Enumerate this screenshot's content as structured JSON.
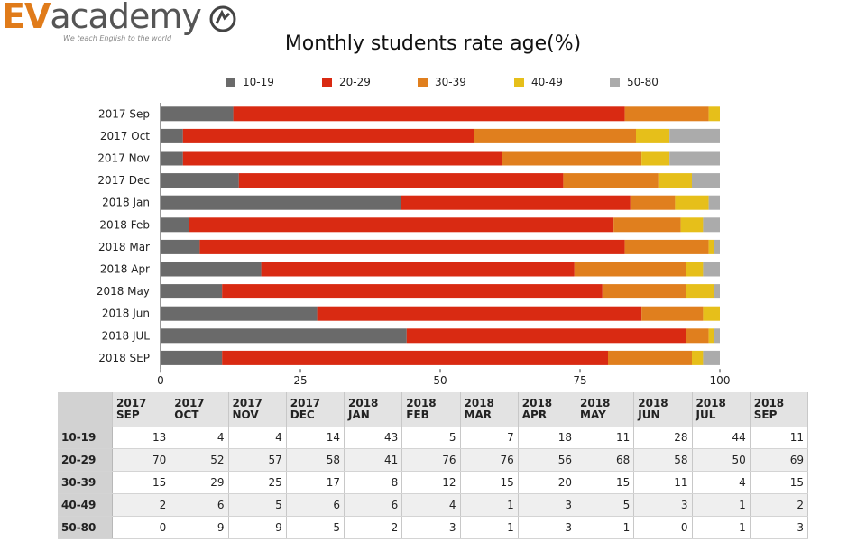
{
  "logo": {
    "brand_prefix": "EV",
    "brand_suffix": "academy",
    "tagline": "We teach English to the world"
  },
  "chart_data": {
    "type": "bar",
    "orientation": "horizontal",
    "stacked": true,
    "title": "Monthly students rate age(%)",
    "categories": [
      "2017 Sep",
      "2017 Oct",
      "2017 Nov",
      "2017 Dec",
      "2018 Jan",
      "2018 Feb",
      "2018 Mar",
      "2018 Apr",
      "2018 May",
      "2018 Jun",
      "2018 JUL",
      "2018 SEP"
    ],
    "series": [
      {
        "name": "10-19",
        "color": "#6a6a6a",
        "values": [
          13,
          4,
          4,
          14,
          43,
          5,
          7,
          18,
          11,
          28,
          44,
          11
        ]
      },
      {
        "name": "20-29",
        "color": "#d92a12",
        "values": [
          70,
          52,
          57,
          58,
          41,
          76,
          76,
          56,
          68,
          58,
          50,
          69
        ]
      },
      {
        "name": "30-39",
        "color": "#e07f1e",
        "values": [
          15,
          29,
          25,
          17,
          8,
          12,
          15,
          20,
          15,
          11,
          4,
          15
        ]
      },
      {
        "name": "40-49",
        "color": "#e6bf1a",
        "values": [
          2,
          6,
          5,
          6,
          6,
          4,
          1,
          3,
          5,
          3,
          1,
          2
        ]
      },
      {
        "name": "50-80",
        "color": "#ababab",
        "values": [
          0,
          9,
          9,
          5,
          2,
          3,
          1,
          3,
          1,
          0,
          1,
          3
        ]
      }
    ],
    "xlim": [
      0,
      100
    ],
    "xticks": [
      0,
      25,
      50,
      75,
      100
    ],
    "legend_position": "top",
    "grid": false
  },
  "table": {
    "columns": [
      {
        "year": "2017",
        "month": "SEP"
      },
      {
        "year": "2017",
        "month": "OCT"
      },
      {
        "year": "2017",
        "month": "NOV"
      },
      {
        "year": "2017",
        "month": "DEC"
      },
      {
        "year": "2018",
        "month": "JAN"
      },
      {
        "year": "2018",
        "month": "FEB"
      },
      {
        "year": "2018",
        "month": "MAR"
      },
      {
        "year": "2018",
        "month": "APR"
      },
      {
        "year": "2018",
        "month": "MAY"
      },
      {
        "year": "2018",
        "month": "JUN"
      },
      {
        "year": "2018",
        "month": "JUL"
      },
      {
        "year": "2018",
        "month": "SEP"
      }
    ],
    "rows": [
      {
        "label": "10-19",
        "values": [
          13,
          4,
          4,
          14,
          43,
          5,
          7,
          18,
          11,
          28,
          44,
          11
        ]
      },
      {
        "label": "20-29",
        "values": [
          70,
          52,
          57,
          58,
          41,
          76,
          76,
          56,
          68,
          58,
          50,
          69
        ]
      },
      {
        "label": "30-39",
        "values": [
          15,
          29,
          25,
          17,
          8,
          12,
          15,
          20,
          15,
          11,
          4,
          15
        ]
      },
      {
        "label": "40-49",
        "values": [
          2,
          6,
          5,
          6,
          6,
          4,
          1,
          3,
          5,
          3,
          1,
          2
        ]
      },
      {
        "label": "50-80",
        "values": [
          0,
          9,
          9,
          5,
          2,
          3,
          1,
          3,
          1,
          0,
          1,
          3
        ]
      }
    ]
  }
}
